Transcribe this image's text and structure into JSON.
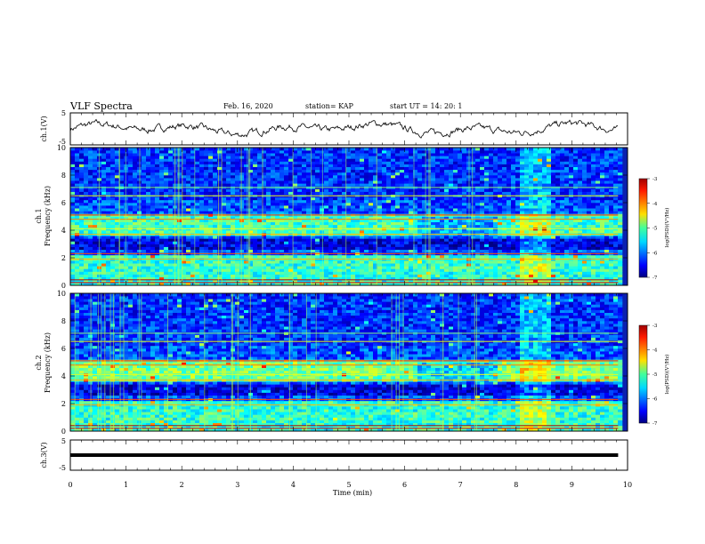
{
  "header": {
    "title": "VLF Spectra",
    "date": "Feb. 16, 2020",
    "station": "station= KAP",
    "start": "start  UT =   14: 20: 1"
  },
  "chart_data": [
    {
      "type": "line",
      "name": "ch1-waveform",
      "ylabel": "ch.1(V)",
      "ylim": [
        -5,
        5
      ],
      "yticks": [
        "5",
        "-5"
      ],
      "x_range_min": [
        0,
        9.83
      ]
    },
    {
      "type": "heatmap",
      "name": "ch1-spectrogram",
      "ylabel_line1": "ch.1",
      "ylabel_line2": "Frequency  (kHz)",
      "ylim_khz": [
        0,
        10
      ],
      "yticks": [
        "0",
        "2",
        "4",
        "6",
        "8",
        "10"
      ],
      "colorbar": {
        "label": "log(PSD)(V²/Hz)",
        "range": [
          -7,
          -3
        ],
        "ticks": [
          "-3",
          "-4",
          "-5",
          "-6",
          "-7"
        ]
      }
    },
    {
      "type": "heatmap",
      "name": "ch2-spectrogram",
      "ylabel_line1": "ch.2",
      "ylabel_line2": "Frequency  (kHz)",
      "ylim_khz": [
        0,
        10
      ],
      "yticks": [
        "0",
        "2",
        "4",
        "6",
        "8",
        "10"
      ],
      "colorbar": {
        "label": "log(PSD)(V²/Hz)",
        "range": [
          -7,
          -3
        ],
        "ticks": [
          "-3",
          "-4",
          "-5",
          "-6",
          "-7"
        ]
      }
    },
    {
      "type": "line",
      "name": "ch3-waveform",
      "ylabel": "ch.3(V)",
      "ylim": [
        -5,
        5
      ],
      "yticks": [
        "5",
        "-5"
      ],
      "constant_value_v": -0.3
    }
  ],
  "xaxis": {
    "label": "Time  (min)",
    "xlim": [
      0,
      10
    ],
    "ticks": [
      "0",
      "1",
      "2",
      "3",
      "4",
      "5",
      "6",
      "7",
      "8",
      "9",
      "10"
    ]
  }
}
